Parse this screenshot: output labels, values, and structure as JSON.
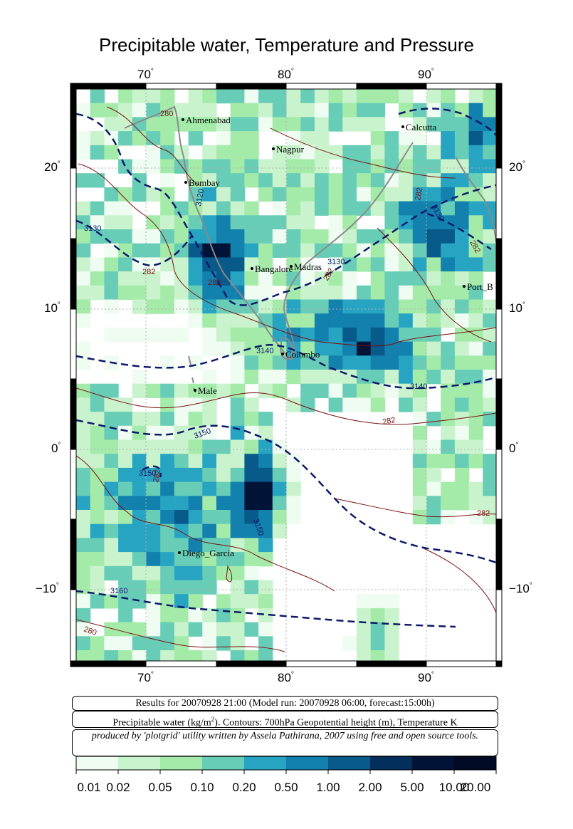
{
  "title": "Precipitable water, Temperature and Pressure",
  "axes": {
    "lon_ticks": [
      "70",
      "80",
      "90"
    ],
    "lat_ticks": [
      "20",
      "10",
      "0",
      "−10"
    ],
    "degree_symbol": "°"
  },
  "cities": [
    {
      "name": "Ahmenabad"
    },
    {
      "name": "Calcutta"
    },
    {
      "name": "Nagpur"
    },
    {
      "name": "Bombay"
    },
    {
      "name": "Bangalore"
    },
    {
      "name": "Madras"
    },
    {
      "name": "Port_B"
    },
    {
      "name": "Colombo"
    },
    {
      "name": "Male"
    },
    {
      "name": "Diego_Garcia"
    }
  ],
  "contour_labels": [
    "280",
    "3120",
    "3130",
    "282",
    "282",
    "3130",
    "282",
    "282",
    "3130",
    "282",
    "3140",
    "3140",
    "282",
    "3150",
    "3150",
    "282",
    "3150",
    "282",
    "3160",
    "280"
  ],
  "info": {
    "line1": "Results for 20070928 21:00 (Model run: 20070928 06:00, forecast:15:00h)",
    "line2_pre": "Precipitable water (kg/m",
    "line2_sup": "2",
    "line2_post": ").  Contours: 700hPa Geopotential height (m), Temperature K",
    "line3": "produced by 'plotgrid' utility written by Assela Pathirana, 2007 using free and open source tools."
  },
  "colorbar": {
    "labels": [
      "0.01",
      "0.02",
      "0.05",
      "0.10",
      "0.20",
      "0.50",
      "1.00",
      "2.00",
      "5.00",
      "10.00",
      "20.00"
    ],
    "colors": [
      "#effcf1",
      "#c9f3cc",
      "#a4ebaa",
      "#68cdb6",
      "#28a4c3",
      "#1281ae",
      "#075a8a",
      "#032f5c",
      "#021338",
      "#010a24",
      "#000000"
    ]
  }
}
